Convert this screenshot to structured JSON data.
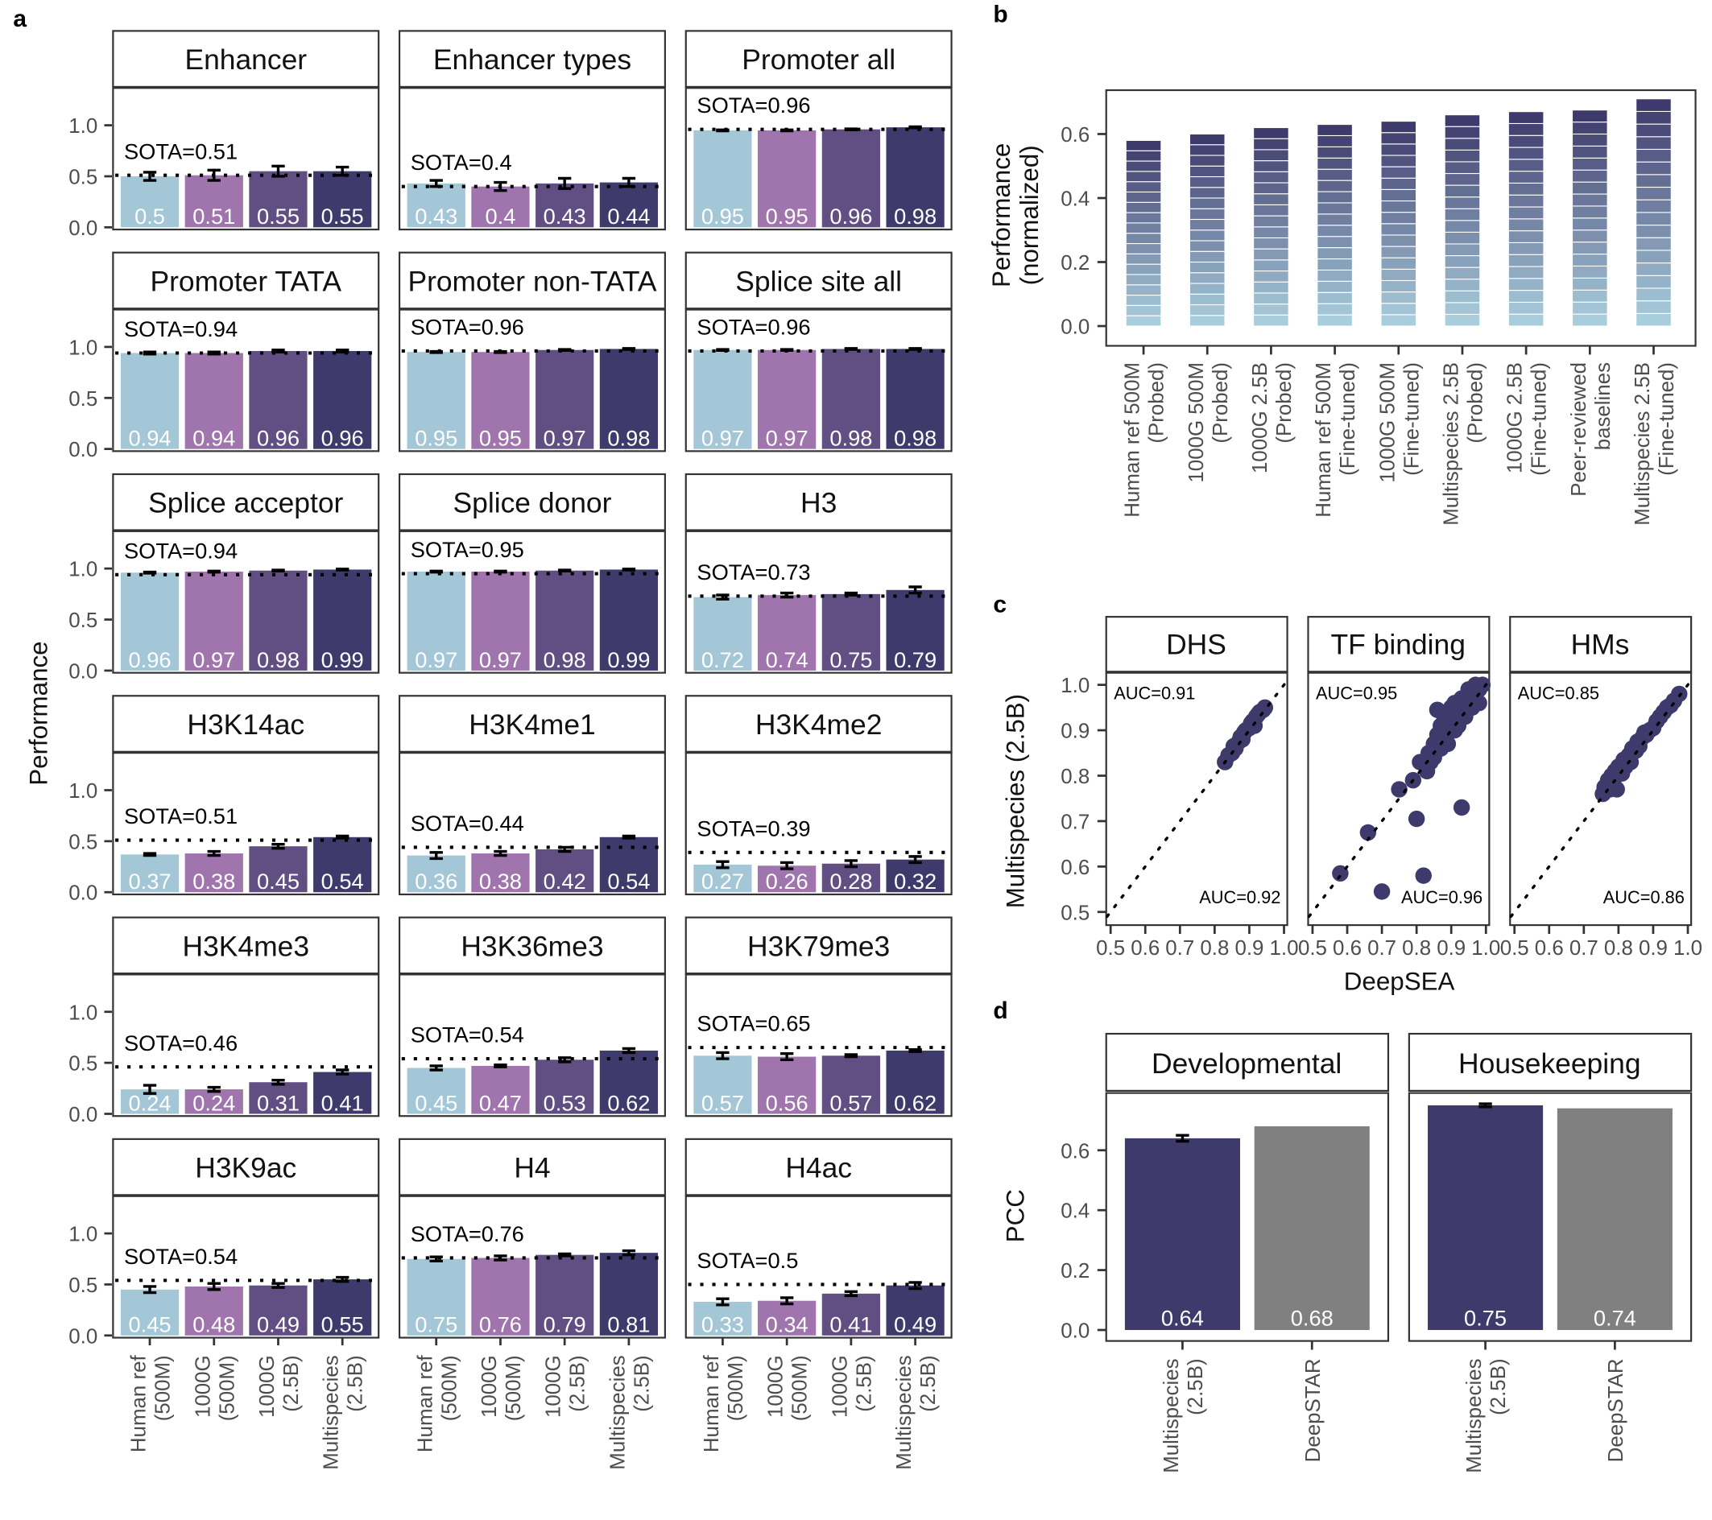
{
  "panel_labels": {
    "a": "a",
    "b": "b",
    "c": "c",
    "d": "d"
  },
  "colors": {
    "human_ref_500m": "#a3c7d6",
    "g1000_500m": "#a074ad",
    "g1000_2_5b": "#614f83",
    "multispecies_2_5b": "#3e3a6b",
    "deepstar": "#808080",
    "gradient_bottom": "#a8cddc",
    "gradient_top": "#3e3a6b"
  },
  "chart_data": [
    {
      "id": "a",
      "type": "bar",
      "ylabel": "Performance",
      "ylim": [
        0,
        1.0
      ],
      "yticks": [
        "0.0",
        "0.5",
        "1.0"
      ],
      "categories": [
        [
          "Human ref",
          "(500M)"
        ],
        [
          "1000G",
          "(500M)"
        ],
        [
          "1000G",
          "(2.5B)"
        ],
        [
          "Multispecies",
          "(2.5B)"
        ]
      ],
      "reference_line": "dotted",
      "sota_prefix": "SOTA=",
      "tasks": [
        {
          "name": "Enhancer",
          "sota": 0.51,
          "values": [
            0.5,
            0.51,
            0.55,
            0.55
          ],
          "errors": [
            0.04,
            0.05,
            0.05,
            0.04
          ]
        },
        {
          "name": "Enhancer types",
          "sota": 0.4,
          "values": [
            0.43,
            0.4,
            0.43,
            0.44
          ],
          "errors": [
            0.03,
            0.04,
            0.05,
            0.04
          ]
        },
        {
          "name": "Promoter all",
          "sota": 0.96,
          "values": [
            0.95,
            0.95,
            0.96,
            0.98
          ],
          "errors": [
            0.005,
            0.005,
            0.005,
            0.005
          ]
        },
        {
          "name": "Promoter TATA",
          "sota": 0.94,
          "values": [
            0.94,
            0.94,
            0.96,
            0.96
          ],
          "errors": [
            0.01,
            0.01,
            0.01,
            0.01
          ]
        },
        {
          "name": "Promoter non-TATA",
          "sota": 0.96,
          "values": [
            0.95,
            0.95,
            0.97,
            0.98
          ],
          "errors": [
            0.005,
            0.005,
            0.005,
            0.005
          ]
        },
        {
          "name": "Splice site all",
          "sota": 0.96,
          "values": [
            0.97,
            0.97,
            0.98,
            0.98
          ],
          "errors": [
            0.005,
            0.005,
            0.005,
            0.005
          ]
        },
        {
          "name": "Splice acceptor",
          "sota": 0.94,
          "values": [
            0.96,
            0.97,
            0.98,
            0.99
          ],
          "errors": [
            0.005,
            0.005,
            0.005,
            0.005
          ]
        },
        {
          "name": "Splice donor",
          "sota": 0.95,
          "values": [
            0.97,
            0.97,
            0.98,
            0.99
          ],
          "errors": [
            0.005,
            0.005,
            0.005,
            0.005
          ]
        },
        {
          "name": "H3",
          "sota": 0.73,
          "values": [
            0.72,
            0.74,
            0.75,
            0.79
          ],
          "errors": [
            0.02,
            0.02,
            0.01,
            0.03
          ]
        },
        {
          "name": "H3K14ac",
          "sota": 0.51,
          "values": [
            0.37,
            0.38,
            0.45,
            0.54
          ],
          "errors": [
            0.01,
            0.02,
            0.02,
            0.01
          ]
        },
        {
          "name": "H3K4me1",
          "sota": 0.44,
          "values": [
            0.36,
            0.38,
            0.42,
            0.54
          ],
          "errors": [
            0.03,
            0.02,
            0.02,
            0.01
          ]
        },
        {
          "name": "H3K4me2",
          "sota": 0.39,
          "values": [
            0.27,
            0.26,
            0.28,
            0.32
          ],
          "errors": [
            0.03,
            0.03,
            0.03,
            0.03
          ]
        },
        {
          "name": "H3K4me3",
          "sota": 0.46,
          "values": [
            0.24,
            0.24,
            0.31,
            0.41
          ],
          "errors": [
            0.04,
            0.02,
            0.02,
            0.02
          ]
        },
        {
          "name": "H3K36me3",
          "sota": 0.54,
          "values": [
            0.45,
            0.47,
            0.53,
            0.62
          ],
          "errors": [
            0.02,
            0.01,
            0.02,
            0.02
          ]
        },
        {
          "name": "H3K79me3",
          "sota": 0.65,
          "values": [
            0.57,
            0.56,
            0.57,
            0.62
          ],
          "errors": [
            0.03,
            0.03,
            0.01,
            0.01
          ]
        },
        {
          "name": "H3K9ac",
          "sota": 0.54,
          "values": [
            0.45,
            0.48,
            0.49,
            0.55
          ],
          "errors": [
            0.03,
            0.03,
            0.02,
            0.02
          ]
        },
        {
          "name": "H4",
          "sota": 0.76,
          "values": [
            0.75,
            0.76,
            0.79,
            0.81
          ],
          "errors": [
            0.02,
            0.02,
            0.01,
            0.02
          ]
        },
        {
          "name": "H4ac",
          "sota": 0.5,
          "values": [
            0.33,
            0.34,
            0.41,
            0.49
          ],
          "errors": [
            0.03,
            0.03,
            0.02,
            0.03
          ]
        }
      ]
    },
    {
      "id": "b",
      "type": "bar",
      "stacked": true,
      "ylabel": [
        "Performance",
        "(normalized)"
      ],
      "ylim": [
        0,
        0.72
      ],
      "yticks": [
        "0.0",
        "0.2",
        "0.4",
        "0.6"
      ],
      "segments_per_bar": 18,
      "categories": [
        [
          "Human ref 500M",
          "(Probed)"
        ],
        [
          "1000G 500M",
          "(Probed)"
        ],
        [
          "1000G 2.5B",
          "(Probed)"
        ],
        [
          "Human ref 500M",
          "(Fine-tuned)"
        ],
        [
          "1000G 500M",
          "(Fine-tuned)"
        ],
        [
          "Multispecies 2.5B",
          "(Probed)"
        ],
        [
          "1000G 2.5B",
          "(Fine-tuned)"
        ],
        [
          "Peer-reviewed",
          "baselines"
        ],
        [
          "Multispecies 2.5B",
          "(Fine-tuned)"
        ]
      ],
      "values": [
        0.58,
        0.6,
        0.62,
        0.63,
        0.64,
        0.66,
        0.67,
        0.675,
        0.71
      ]
    },
    {
      "id": "c",
      "type": "scatter",
      "xlabel": "DeepSEA",
      "ylabel": "Multispecies (2.5B)",
      "xlim": [
        0.5,
        1.0
      ],
      "ylim": [
        0.5,
        1.0
      ],
      "ticks": [
        "0.5",
        "0.6",
        "0.7",
        "0.8",
        "0.9",
        "1.0"
      ],
      "reference_line": "y = x (dotted)",
      "panels": [
        {
          "name": "DHS",
          "auc_top": "AUC=0.91",
          "auc_bottom": "AUC=0.92",
          "points": [
            [
              0.83,
              0.83
            ],
            [
              0.84,
              0.845
            ],
            [
              0.85,
              0.85
            ],
            [
              0.855,
              0.865
            ],
            [
              0.86,
              0.86
            ],
            [
              0.87,
              0.875
            ],
            [
              0.875,
              0.885
            ],
            [
              0.88,
              0.88
            ],
            [
              0.885,
              0.895
            ],
            [
              0.89,
              0.9
            ],
            [
              0.9,
              0.905
            ],
            [
              0.905,
              0.915
            ],
            [
              0.91,
              0.92
            ],
            [
              0.915,
              0.91
            ],
            [
              0.92,
              0.93
            ],
            [
              0.925,
              0.935
            ],
            [
              0.93,
              0.94
            ],
            [
              0.94,
              0.945
            ],
            [
              0.945,
              0.95
            ]
          ]
        },
        {
          "name": "TF binding",
          "auc_top": "AUC=0.95",
          "auc_bottom": "AUC=0.96",
          "points": [
            [
              0.58,
              0.585
            ],
            [
              0.66,
              0.675
            ],
            [
              0.7,
              0.545
            ],
            [
              0.75,
              0.77
            ],
            [
              0.79,
              0.79
            ],
            [
              0.8,
              0.705
            ],
            [
              0.82,
              0.58
            ],
            [
              0.93,
              0.73
            ],
            [
              0.81,
              0.83
            ],
            [
              0.83,
              0.81
            ],
            [
              0.835,
              0.85
            ],
            [
              0.84,
              0.83
            ],
            [
              0.85,
              0.87
            ],
            [
              0.85,
              0.84
            ],
            [
              0.86,
              0.945
            ],
            [
              0.86,
              0.89
            ],
            [
              0.87,
              0.86
            ],
            [
              0.87,
              0.91
            ],
            [
              0.88,
              0.88
            ],
            [
              0.88,
              0.93
            ],
            [
              0.89,
              0.9
            ],
            [
              0.89,
              0.87
            ],
            [
              0.9,
              0.95
            ],
            [
              0.9,
              0.92
            ],
            [
              0.91,
              0.9
            ],
            [
              0.91,
              0.96
            ],
            [
              0.92,
              0.94
            ],
            [
              0.92,
              0.91
            ],
            [
              0.93,
              0.97
            ],
            [
              0.93,
              0.95
            ],
            [
              0.94,
              0.93
            ],
            [
              0.94,
              0.97
            ],
            [
              0.95,
              0.96
            ],
            [
              0.95,
              0.99
            ],
            [
              0.96,
              0.95
            ],
            [
              0.96,
              0.98
            ],
            [
              0.97,
              0.97
            ],
            [
              0.97,
              1.0
            ],
            [
              0.98,
              0.99
            ],
            [
              0.99,
              1.0
            ],
            [
              0.98,
              0.96
            ]
          ]
        },
        {
          "name": "HMs",
          "auc_top": "AUC=0.85",
          "auc_bottom": "AUC=0.86",
          "points": [
            [
              0.755,
              0.76
            ],
            [
              0.76,
              0.775
            ],
            [
              0.77,
              0.79
            ],
            [
              0.775,
              0.77
            ],
            [
              0.78,
              0.8
            ],
            [
              0.785,
              0.785
            ],
            [
              0.79,
              0.81
            ],
            [
              0.795,
              0.77
            ],
            [
              0.8,
              0.82
            ],
            [
              0.81,
              0.805
            ],
            [
              0.815,
              0.835
            ],
            [
              0.82,
              0.82
            ],
            [
              0.83,
              0.845
            ],
            [
              0.835,
              0.83
            ],
            [
              0.84,
              0.86
            ],
            [
              0.85,
              0.855
            ],
            [
              0.855,
              0.875
            ],
            [
              0.86,
              0.865
            ],
            [
              0.87,
              0.885
            ],
            [
              0.875,
              0.895
            ],
            [
              0.88,
              0.89
            ],
            [
              0.89,
              0.9
            ],
            [
              0.9,
              0.905
            ],
            [
              0.91,
              0.92
            ],
            [
              0.92,
              0.93
            ],
            [
              0.93,
              0.94
            ],
            [
              0.94,
              0.95
            ],
            [
              0.95,
              0.955
            ],
            [
              0.96,
              0.965
            ],
            [
              0.975,
              0.98
            ]
          ]
        }
      ]
    },
    {
      "id": "d",
      "type": "bar",
      "ylabel": "PCC",
      "ylim": [
        0,
        0.78
      ],
      "yticks": [
        "0.0",
        "0.2",
        "0.4",
        "0.6"
      ],
      "categories": [
        [
          "Multispecies",
          "(2.5B)"
        ],
        [
          "DeepSTAR"
        ]
      ],
      "panels": [
        {
          "name": "Developmental",
          "values": [
            0.64,
            0.68
          ],
          "errors": [
            0.01,
            null
          ]
        },
        {
          "name": "Housekeeping",
          "values": [
            0.75,
            0.74
          ],
          "errors": [
            0.005,
            null
          ]
        }
      ]
    }
  ]
}
